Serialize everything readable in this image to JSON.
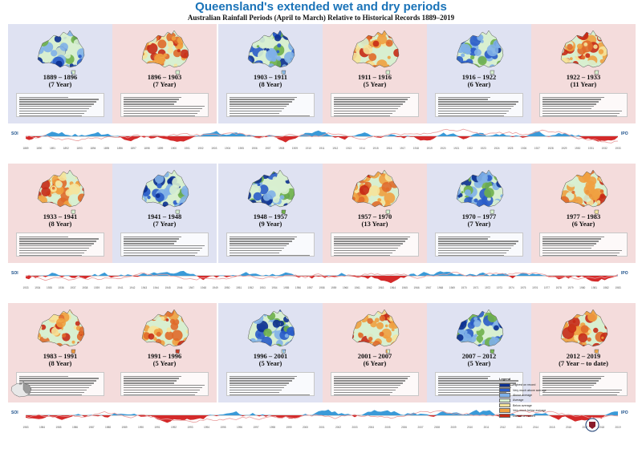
{
  "header": {
    "title": "Queensland's extended wet and dry periods",
    "subtitle": "Australian Rainfall Periods (April to March) Relative to Historical Records 1889–2019"
  },
  "rows": [
    {
      "periods": [
        {
          "label": "1889 – 1896",
          "length": "(7 Year)",
          "type": "wet"
        },
        {
          "label": "1896 – 1903",
          "length": "(7 Year)",
          "type": "dry"
        },
        {
          "label": "1903 – 1911",
          "length": "(8 Year)",
          "type": "wet"
        },
        {
          "label": "1911 – 1916",
          "length": "(5 Year)",
          "type": "dry"
        },
        {
          "label": "1916 – 1922",
          "length": "(6 Year)",
          "type": "wet"
        },
        {
          "label": "1922 – 1933",
          "length": "(11 Year)",
          "type": "dry"
        }
      ],
      "years": [
        "1889",
        "1890",
        "1891",
        "1892",
        "1893",
        "1894",
        "1895",
        "1896",
        "1897",
        "1898",
        "1899",
        "1900",
        "1901",
        "1902",
        "1903",
        "1904",
        "1905",
        "1906",
        "1907",
        "1908",
        "1909",
        "1910",
        "1911",
        "1912",
        "1913",
        "1914",
        "1915",
        "1916",
        "1917",
        "1918",
        "1919",
        "1920",
        "1921",
        "1922",
        "1923",
        "1924",
        "1925",
        "1926",
        "1927",
        "1928",
        "1929",
        "1930",
        "1931",
        "1932",
        "1933"
      ]
    },
    {
      "periods": [
        {
          "label": "1933 – 1941",
          "length": "(8 Year)",
          "type": "dry"
        },
        {
          "label": "1941 – 1948",
          "length": "(7 Year)",
          "type": "wet"
        },
        {
          "label": "1948 – 1957",
          "length": "(9 Year)",
          "type": "wet"
        },
        {
          "label": "1957 – 1970",
          "length": "(13 Year)",
          "type": "dry"
        },
        {
          "label": "1970 – 1977",
          "length": "(7 Year)",
          "type": "wet"
        },
        {
          "label": "1977 – 1983",
          "length": "(6 Year)",
          "type": "dry"
        }
      ],
      "years": [
        "1933",
        "1934",
        "1935",
        "1936",
        "1937",
        "1938",
        "1939",
        "1940",
        "1941",
        "1942",
        "1943",
        "1944",
        "1945",
        "1946",
        "1947",
        "1948",
        "1949",
        "1950",
        "1951",
        "1952",
        "1953",
        "1954",
        "1955",
        "1956",
        "1957",
        "1958",
        "1959",
        "1960",
        "1961",
        "1962",
        "1963",
        "1964",
        "1965",
        "1966",
        "1967",
        "1968",
        "1969",
        "1970",
        "1971",
        "1972",
        "1973",
        "1974",
        "1975",
        "1976",
        "1977",
        "1978",
        "1979",
        "1980",
        "1981",
        "1982",
        "1983"
      ]
    },
    {
      "periods": [
        {
          "label": "1983 – 1991",
          "length": "(8 Year)",
          "type": "dry"
        },
        {
          "label": "1991 – 1996",
          "length": "(5 Year)",
          "type": "dry"
        },
        {
          "label": "1996 – 2001",
          "length": "(5 Year)",
          "type": "wet"
        },
        {
          "label": "2001 – 2007",
          "length": "(6 Year)",
          "type": "dry"
        },
        {
          "label": "2007 – 2012",
          "length": "(5 Year)",
          "type": "wet"
        },
        {
          "label": "2012 – 2019",
          "length": "(7 Year – to date)",
          "type": "dry"
        }
      ],
      "years": [
        "1983",
        "1984",
        "1985",
        "1986",
        "1987",
        "1988",
        "1989",
        "1990",
        "1991",
        "1992",
        "1993",
        "1994",
        "1995",
        "1996",
        "1997",
        "1998",
        "1999",
        "2000",
        "2001",
        "2002",
        "2003",
        "2004",
        "2005",
        "2006",
        "2007",
        "2008",
        "2009",
        "2010",
        "2011",
        "2012",
        "2013",
        "2014",
        "2015",
        "2016",
        "2017",
        "2018",
        "2019"
      ]
    }
  ],
  "indices": {
    "soi": "SOI",
    "ipo": "IPO"
  },
  "legend": {
    "title": "Legend",
    "items": [
      {
        "label": "Highest on record",
        "color": "#0b2f8f"
      },
      {
        "label": "Very much above average",
        "color": "#2a5cc8"
      },
      {
        "label": "Above average",
        "color": "#7fb0e8"
      },
      {
        "label": "Average",
        "color": "#d8efd0"
      },
      {
        "label": "Below average",
        "color": "#f6e39a"
      },
      {
        "label": "Very much below average",
        "color": "#f0a040"
      },
      {
        "label": "Lowest on record",
        "color": "#c62a16"
      }
    ]
  },
  "colors": {
    "wet_band": "#dfe2f2",
    "dry_band": "#f4dcdc",
    "soi_positive": "#3a9ad8",
    "soi_negative": "#d42a2a",
    "title": "#1a73b8"
  }
}
